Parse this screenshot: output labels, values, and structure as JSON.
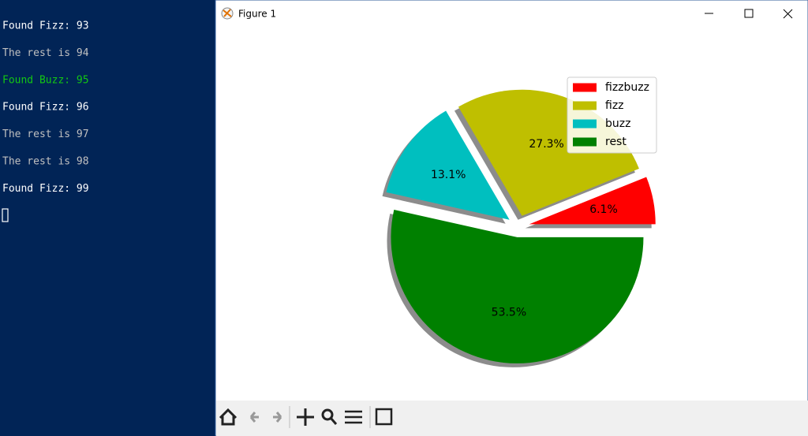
{
  "terminal": {
    "lines": [
      {
        "text": "Found Fizz: 93",
        "color": "#ffffff"
      },
      {
        "text": "The rest is 94",
        "color": "#c0c0c0"
      },
      {
        "text": "Found Buzz: 95",
        "color": "#13c713"
      },
      {
        "text": "Found Fizz: 96",
        "color": "#ffffff"
      },
      {
        "text": "The rest is 97",
        "color": "#c0c0c0"
      },
      {
        "text": "The rest is 98",
        "color": "#c0c0c0"
      },
      {
        "text": "Found Fizz: 99",
        "color": "#ffffff"
      }
    ]
  },
  "window": {
    "title": "Figure 1"
  },
  "chart_data": {
    "type": "pie",
    "categories": [
      "fizzbuzz",
      "fizz",
      "buzz",
      "rest"
    ],
    "values": [
      6.1,
      27.3,
      13.1,
      53.5
    ],
    "value_labels": [
      "6.1%",
      "27.3%",
      "13.1%",
      "53.5%"
    ],
    "colors": [
      "#ff0000",
      "#bfbf00",
      "#00bfbf",
      "#008000"
    ],
    "shadow": true,
    "legend": "upper right"
  }
}
